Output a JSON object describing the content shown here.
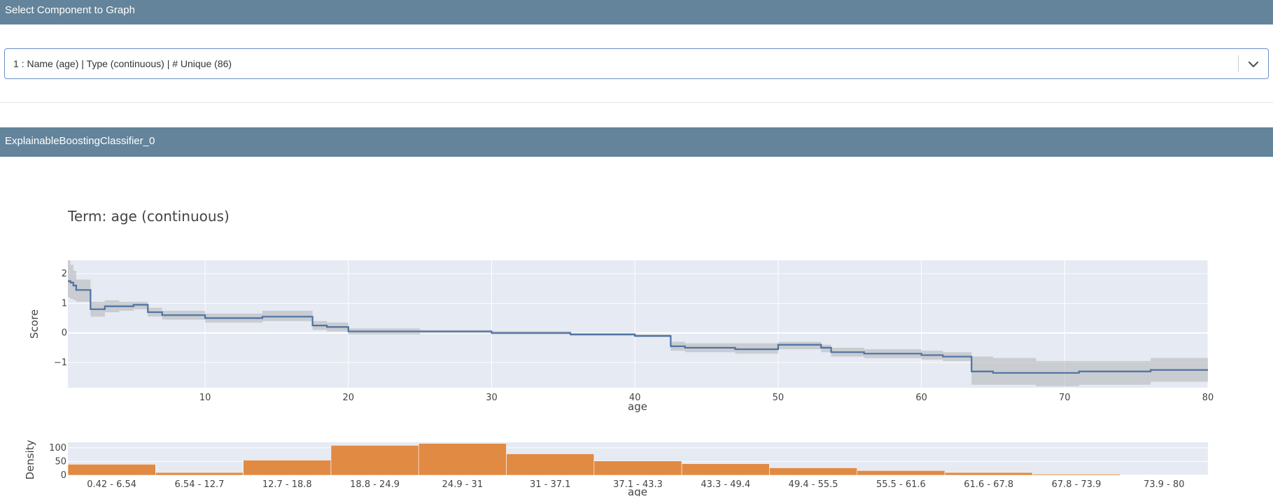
{
  "header": {
    "title": "Select Component to Graph"
  },
  "selector": {
    "value": "1 : Name (age) | Type (continuous) | # Unique (86)"
  },
  "model_header": {
    "title": "ExplainableBoostingClassifier_0"
  },
  "colors": {
    "header_bg": "#63849a",
    "plot_bg": "#e5eaf3",
    "score_line": "#4c72a4",
    "band": "#b3b3b3",
    "density_bar": "#e08a44"
  },
  "chart_data": [
    {
      "type": "line",
      "title": "Term: age (continuous)",
      "xlabel": "age",
      "ylabel": "Score",
      "xlim": [
        0.42,
        80
      ],
      "ylim": [
        -1.85,
        2.45
      ],
      "x_ticks": [
        10,
        20,
        30,
        40,
        50,
        60,
        70,
        80
      ],
      "y_ticks": [
        2,
        1,
        0,
        -1
      ],
      "y_tick_labels": [
        "2",
        "1",
        "0",
        "−1"
      ],
      "grid": true,
      "shape": "step",
      "series": [
        {
          "x": [
            0.42,
            0.6,
            0.8,
            1.0,
            1.3,
            2.0,
            3.0,
            4.0,
            5.0,
            6.0,
            7.0,
            10.0,
            12.0,
            14.0,
            15.5,
            17.5,
            18.5,
            20.0,
            21.5,
            25.0,
            30.0,
            34.5,
            35.5,
            40.0,
            42.5,
            43.5,
            47.0,
            50.0,
            53.0,
            53.7,
            56.0,
            60.0,
            61.5,
            63.5,
            65.0,
            68.0,
            71.0,
            76.0,
            80.0
          ],
          "y": [
            1.75,
            1.7,
            1.6,
            1.45,
            1.45,
            0.8,
            0.9,
            0.9,
            0.95,
            0.7,
            0.6,
            0.5,
            0.5,
            0.55,
            0.55,
            0.25,
            0.2,
            0.05,
            0.05,
            0.05,
            0.0,
            0.0,
            -0.05,
            -0.1,
            -0.45,
            -0.5,
            -0.55,
            -0.4,
            -0.5,
            -0.65,
            -0.7,
            -0.75,
            -0.8,
            -1.3,
            -1.35,
            -1.35,
            -1.3,
            -1.25,
            -1.25
          ],
          "upper": [
            2.45,
            2.3,
            2.1,
            1.8,
            1.8,
            1.05,
            1.1,
            1.05,
            1.05,
            0.85,
            0.75,
            0.65,
            0.65,
            0.75,
            0.75,
            0.4,
            0.35,
            0.15,
            0.15,
            0.1,
            0.05,
            0.05,
            0.0,
            -0.05,
            -0.3,
            -0.35,
            -0.35,
            -0.3,
            -0.4,
            -0.5,
            -0.55,
            -0.6,
            -0.65,
            -0.8,
            -0.85,
            -0.95,
            -0.95,
            -0.85,
            -0.85
          ],
          "lower": [
            1.2,
            1.15,
            1.1,
            1.05,
            1.05,
            0.55,
            0.7,
            0.75,
            0.8,
            0.55,
            0.45,
            0.35,
            0.35,
            0.4,
            0.4,
            0.1,
            0.05,
            -0.05,
            -0.05,
            0.0,
            -0.05,
            -0.05,
            -0.1,
            -0.15,
            -0.6,
            -0.65,
            -0.7,
            -0.55,
            -0.65,
            -0.8,
            -0.85,
            -0.9,
            -0.95,
            -1.75,
            -1.75,
            -1.8,
            -1.75,
            -1.65,
            -1.65
          ]
        }
      ]
    },
    {
      "type": "bar",
      "xlabel": "age",
      "ylabel": "Density",
      "ylim": [
        0,
        120
      ],
      "y_ticks": [
        0,
        50,
        100
      ],
      "grid": true,
      "categories": [
        "0.42 - 6.54",
        "6.54 - 12.7",
        "12.7 - 18.8",
        "18.8 - 24.9",
        "24.9 - 31",
        "31 - 37.1",
        "37.1 - 43.3",
        "43.3 - 49.4",
        "49.4 - 55.5",
        "55.5 - 61.6",
        "61.6 - 67.8",
        "67.8 - 73.9",
        "73.9 - 80"
      ],
      "values": [
        40,
        10,
        55,
        109,
        116,
        78,
        52,
        42,
        27,
        17,
        10,
        4,
        1
      ]
    }
  ]
}
